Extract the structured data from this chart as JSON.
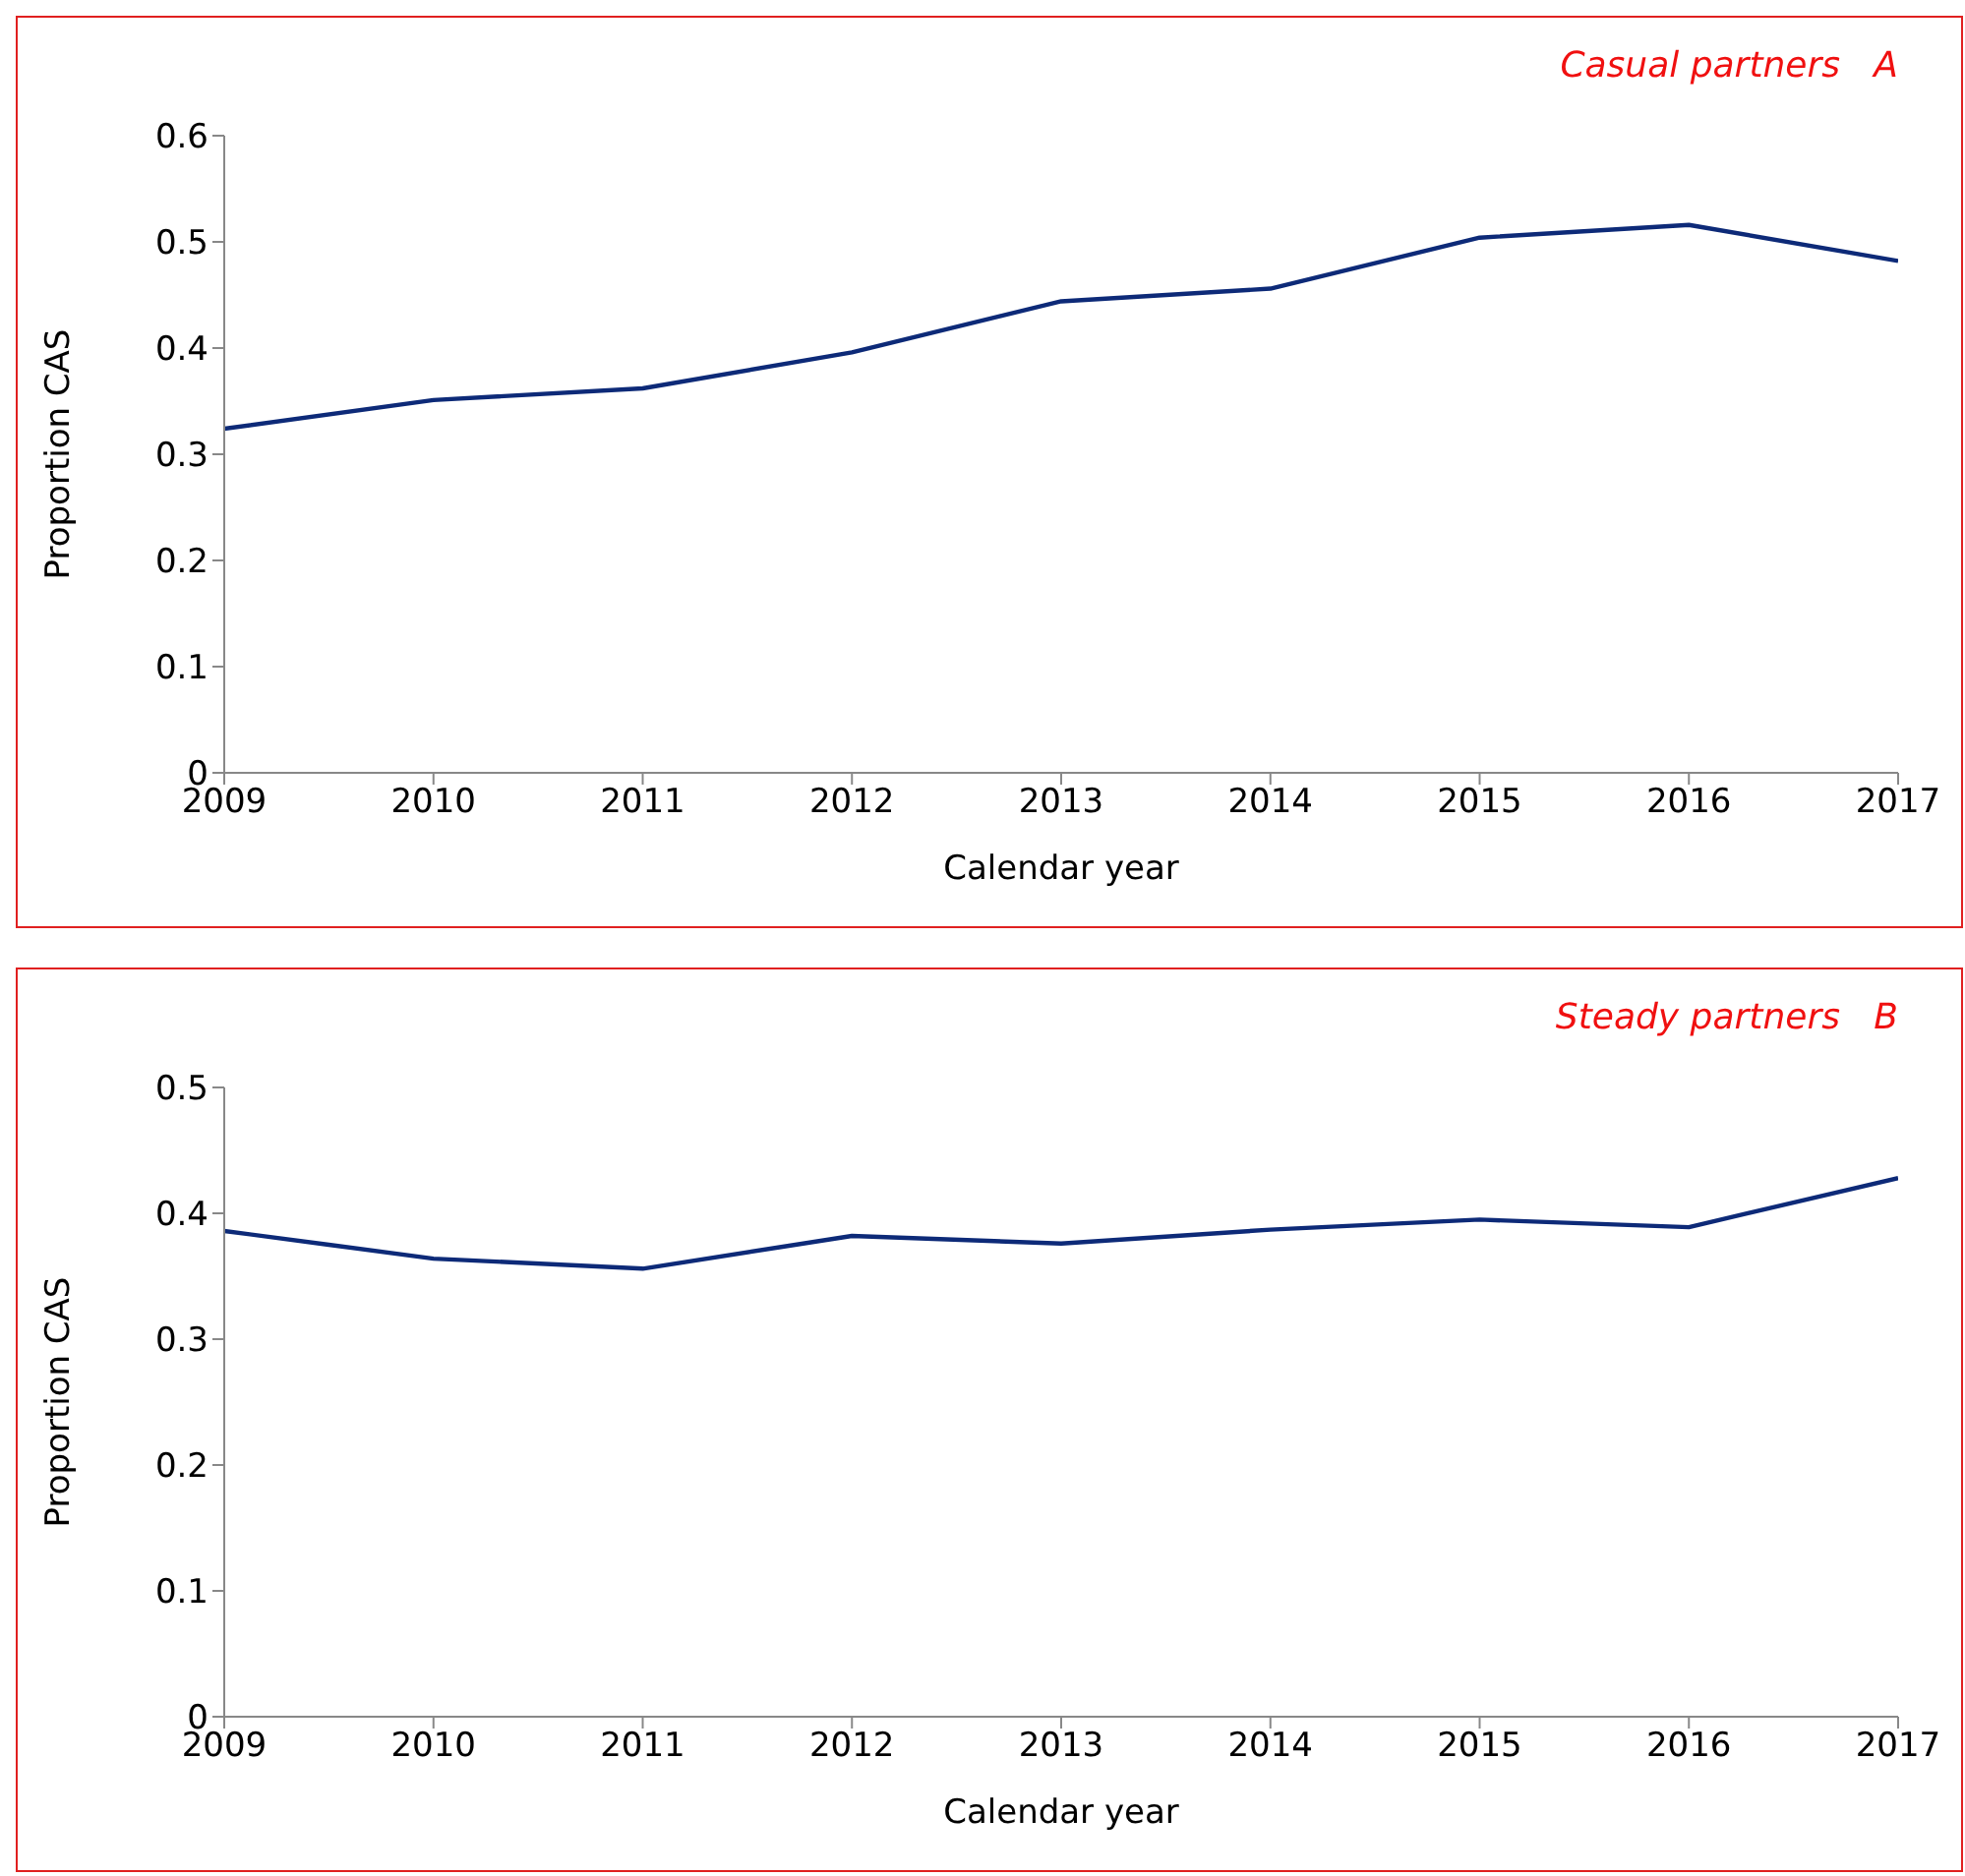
{
  "chart_data": [
    {
      "type": "line",
      "title": "Casual partners   A",
      "xlabel": "Calendar year",
      "ylabel": "Proportion CAS",
      "x": [
        2009,
        2010,
        2011,
        2012,
        2013,
        2014,
        2015,
        2016,
        2017
      ],
      "series": [
        {
          "color": "#0d2a78",
          "values": [
            0.324,
            0.351,
            0.362,
            0.396,
            0.444,
            0.456,
            0.504,
            0.516,
            0.482
          ]
        }
      ],
      "xlim": [
        2009,
        2017
      ],
      "xticks": [
        2009,
        2010,
        2011,
        2012,
        2013,
        2014,
        2015,
        2016,
        2017
      ],
      "ylim": [
        0,
        0.6
      ],
      "yticks": [
        0,
        0.1,
        0.2,
        0.3,
        0.4,
        0.5,
        0.6
      ],
      "grid": false,
      "legend": false,
      "marker": "none",
      "line_style": "solid"
    },
    {
      "type": "line",
      "title": "Steady partners   B",
      "xlabel": "Calendar year",
      "ylabel": "Proportion CAS",
      "x": [
        2009,
        2009.5,
        2010,
        2011,
        2012,
        2013,
        2014,
        2015,
        2016,
        2017
      ],
      "series": [
        {
          "color": "#0d2a78",
          "values": [
            0.386,
            0.375,
            0.364,
            0.356,
            0.382,
            0.376,
            0.387,
            0.395,
            0.389,
            0.428
          ]
        }
      ],
      "xlim": [
        2009,
        2017
      ],
      "xticks": [
        2009,
        2010,
        2011,
        2012,
        2013,
        2014,
        2015,
        2016,
        2017
      ],
      "ylim": [
        0,
        0.5
      ],
      "yticks": [
        0,
        0.1,
        0.2,
        0.3,
        0.4,
        0.5
      ],
      "grid": false,
      "legend": false,
      "marker": "none",
      "line_style": "solid"
    }
  ]
}
